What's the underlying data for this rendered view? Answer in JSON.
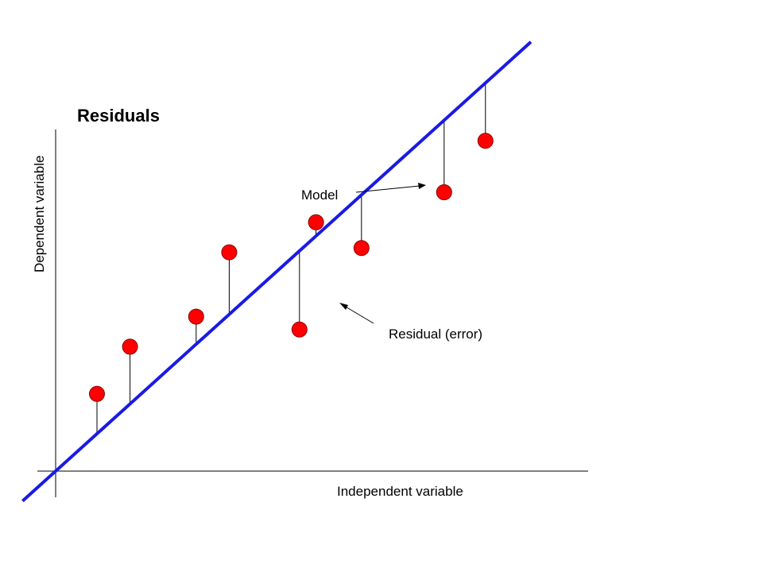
{
  "title": "Residuals",
  "labels": {
    "x_axis": "Independent variable",
    "y_axis": "Dependent variable",
    "model": "Model",
    "residual": "Residual (error)"
  },
  "colors": {
    "model_line": "#1a1ae6",
    "point_fill": "#ff0000",
    "point_stroke": "#8a0000",
    "axes": "#000000"
  },
  "points": [
    {
      "x": 1.0,
      "y": 1.8
    },
    {
      "x": 1.8,
      "y": 2.9
    },
    {
      "x": 3.4,
      "y": 3.6
    },
    {
      "x": 4.2,
      "y": 5.1
    },
    {
      "x": 5.9,
      "y": 3.3
    },
    {
      "x": 6.3,
      "y": 5.8
    },
    {
      "x": 7.4,
      "y": 5.2
    },
    {
      "x": 9.4,
      "y": 6.5
    },
    {
      "x": 10.4,
      "y": 7.7
    }
  ],
  "model": {
    "slope": 0.87,
    "intercept": 0.0
  }
}
